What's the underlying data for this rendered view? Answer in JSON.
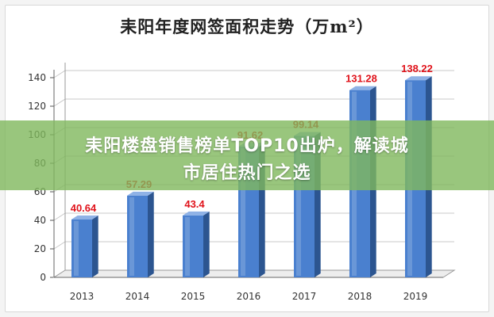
{
  "chart_data": {
    "type": "bar",
    "title": "耒阳年度网签面积走势（万m²）",
    "categories": [
      "2013",
      "2014",
      "2015",
      "2016",
      "2017",
      "2018",
      "2019"
    ],
    "values": [
      40.64,
      57.29,
      43.4,
      91.62,
      99.14,
      131.28,
      138.22
    ],
    "data_labels": [
      "40.64",
      "57.29",
      "43.4",
      "91.62",
      "99.14",
      "131.28",
      "138.22"
    ],
    "y_ticks": [
      0,
      20,
      40,
      60,
      80,
      100,
      120,
      140
    ],
    "ylim": [
      0,
      150
    ],
    "xlabel": "",
    "ylabel": "",
    "grid": true,
    "style": "3d",
    "colors": {
      "bar_front": "#4a80cf",
      "bar_side": "#2c5590",
      "bar_top": "#8fb2e6",
      "data_label": "#e0121a",
      "grid": "#c8c8c8"
    }
  },
  "banner": {
    "line1": "耒阳楼盘销售榜单TOP10出炉，解读城",
    "line2": "市居住热门之选"
  }
}
